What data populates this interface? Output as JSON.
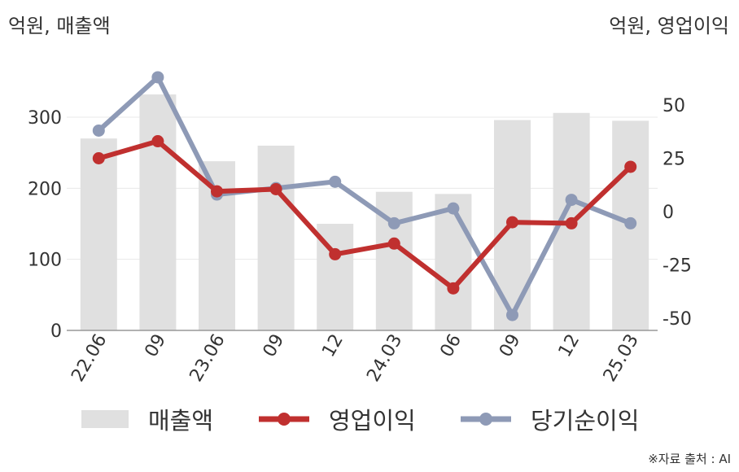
{
  "unit_left": "억원, 매출액",
  "unit_right": "억원, 영업이익",
  "source": "※자료 출처 : AI",
  "colors": {
    "bar": "#e0e0e0",
    "op": "#c0302f",
    "net": "#8e9ab6",
    "axis": "#999999",
    "grid": "#e8e8e8"
  },
  "chart_data": {
    "type": "bar",
    "categories": [
      "22.06",
      "09",
      "23.06",
      "09",
      "12",
      "24.03",
      "06",
      "09",
      "12",
      "25.03"
    ],
    "y_left": {
      "label": "억원, 매출액",
      "ticks": [
        0,
        100,
        200,
        300
      ],
      "range": [
        0,
        300
      ]
    },
    "y_right": {
      "label": "억원, 영업이익",
      "ticks": [
        -50,
        -25,
        0,
        25,
        50
      ],
      "range": [
        -50,
        50
      ]
    },
    "series": [
      {
        "name": "매출액",
        "type": "bar",
        "axis": "left",
        "values": [
          270,
          332,
          238,
          260,
          150,
          195,
          192,
          296,
          306,
          295
        ]
      },
      {
        "name": "영업이익",
        "type": "line",
        "axis": "right",
        "values": [
          25,
          33,
          9.5,
          10.5,
          -20,
          -15,
          -36,
          -5,
          -5.5,
          21
        ]
      },
      {
        "name": "당기순이익",
        "type": "line",
        "axis": "right",
        "values": [
          38,
          63,
          8,
          11,
          14,
          -5.5,
          1.5,
          -48.5,
          5.5,
          -5.5
        ]
      }
    ],
    "legend": "bottom"
  }
}
